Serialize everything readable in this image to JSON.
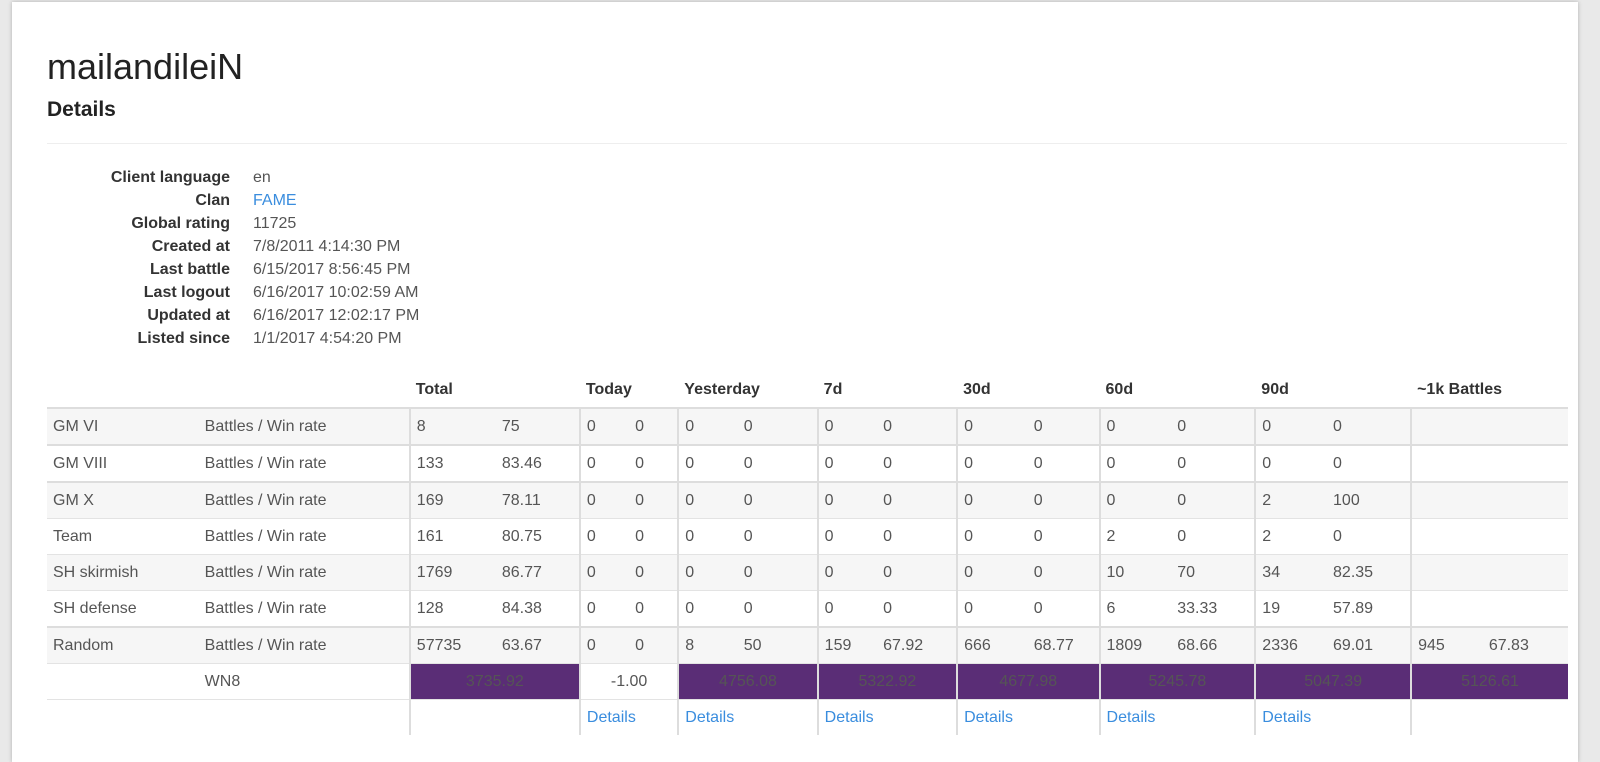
{
  "player": {
    "name": "mailandileiN",
    "subtitle": "Details"
  },
  "info": [
    {
      "label": "Client language",
      "value": "en"
    },
    {
      "label": "Clan",
      "value": "FAME",
      "link": true
    },
    {
      "label": "Global rating",
      "value": "11725"
    },
    {
      "label": "Created at",
      "value": "7/8/2011 4:14:30 PM"
    },
    {
      "label": "Last battle",
      "value": "6/15/2017 8:56:45 PM"
    },
    {
      "label": "Last logout",
      "value": "6/16/2017 10:02:59 AM"
    },
    {
      "label": "Updated at",
      "value": "6/16/2017 12:02:17 PM"
    },
    {
      "label": "Listed since",
      "value": "1/1/2017 4:54:20 PM"
    }
  ],
  "columns": [
    "Total",
    "Today",
    "Yesterday",
    "7d",
    "30d",
    "60d",
    "90d",
    "~1k Battles"
  ],
  "rows": [
    {
      "mode": "GM VI",
      "metric": "Battles / Win rate",
      "cells": [
        [
          "8",
          "75"
        ],
        [
          "0",
          "0"
        ],
        [
          "0",
          "0"
        ],
        [
          "0",
          "0"
        ],
        [
          "0",
          "0"
        ],
        [
          "0",
          "0"
        ],
        [
          "0",
          "0"
        ],
        [
          "",
          ""
        ]
      ]
    },
    {
      "mode": "GM VIII",
      "metric": "Battles / Win rate",
      "cells": [
        [
          "133",
          "83.46"
        ],
        [
          "0",
          "0"
        ],
        [
          "0",
          "0"
        ],
        [
          "0",
          "0"
        ],
        [
          "0",
          "0"
        ],
        [
          "0",
          "0"
        ],
        [
          "0",
          "0"
        ],
        [
          "",
          ""
        ]
      ]
    },
    {
      "mode": "GM X",
      "metric": "Battles / Win rate",
      "cells": [
        [
          "169",
          "78.11"
        ],
        [
          "0",
          "0"
        ],
        [
          "0",
          "0"
        ],
        [
          "0",
          "0"
        ],
        [
          "0",
          "0"
        ],
        [
          "0",
          "0"
        ],
        [
          "2",
          "100"
        ],
        [
          "",
          ""
        ]
      ]
    },
    {
      "mode": "Team",
      "metric": "Battles / Win rate",
      "cells": [
        [
          "161",
          "80.75"
        ],
        [
          "0",
          "0"
        ],
        [
          "0",
          "0"
        ],
        [
          "0",
          "0"
        ],
        [
          "0",
          "0"
        ],
        [
          "2",
          "0"
        ],
        [
          "2",
          "0"
        ],
        [
          "",
          ""
        ]
      ]
    },
    {
      "mode": "SH skirmish",
      "metric": "Battles / Win rate",
      "cells": [
        [
          "1769",
          "86.77"
        ],
        [
          "0",
          "0"
        ],
        [
          "0",
          "0"
        ],
        [
          "0",
          "0"
        ],
        [
          "0",
          "0"
        ],
        [
          "10",
          "70"
        ],
        [
          "34",
          "82.35"
        ],
        [
          "",
          ""
        ]
      ]
    },
    {
      "mode": "SH defense",
      "metric": "Battles / Win rate",
      "cells": [
        [
          "128",
          "84.38"
        ],
        [
          "0",
          "0"
        ],
        [
          "0",
          "0"
        ],
        [
          "0",
          "0"
        ],
        [
          "0",
          "0"
        ],
        [
          "6",
          "33.33"
        ],
        [
          "19",
          "57.89"
        ],
        [
          "",
          ""
        ]
      ]
    },
    {
      "mode": "Random",
      "metric": "Battles / Win rate",
      "cells": [
        [
          "57735",
          "63.67"
        ],
        [
          "0",
          "0"
        ],
        [
          "8",
          "50"
        ],
        [
          "159",
          "67.92"
        ],
        [
          "666",
          "68.77"
        ],
        [
          "1809",
          "68.66"
        ],
        [
          "2336",
          "69.01"
        ],
        [
          "945",
          "67.83"
        ]
      ]
    }
  ],
  "wn8": {
    "label": "WN8",
    "values": [
      "3735.92",
      "-1.00",
      "4756.08",
      "5322.92",
      "4677.98",
      "5245.78",
      "5047.39",
      "5126.61"
    ],
    "highlight": [
      true,
      false,
      true,
      true,
      true,
      true,
      true,
      true
    ],
    "color": "#5a2d76"
  },
  "details_links": [
    "",
    "Details",
    "Details",
    "Details",
    "Details",
    "Details",
    "Details",
    ""
  ]
}
